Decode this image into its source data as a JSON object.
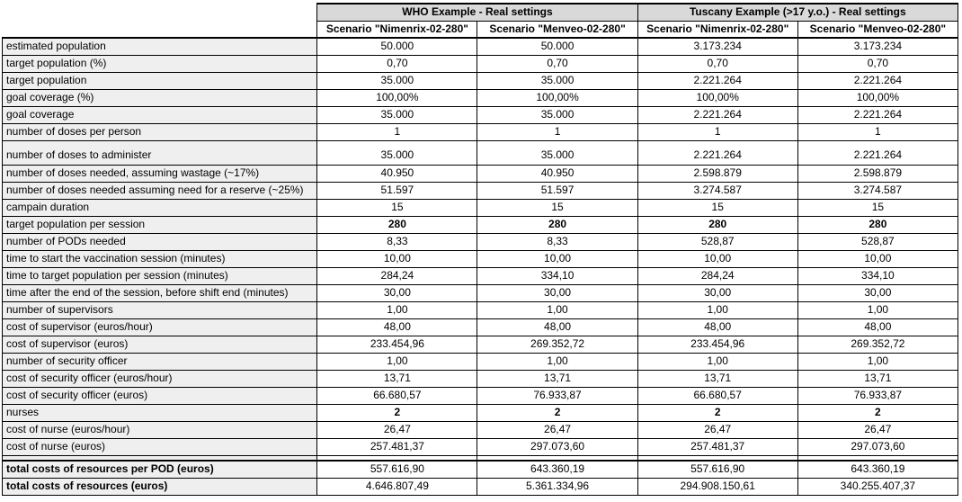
{
  "table": {
    "colors": {
      "group_header_bg": "#D9D9D9",
      "label_bg": "#EFEFEF",
      "border": "#000000",
      "value_bg": "#FFFFFF"
    },
    "groups": [
      {
        "label": "WHO Example - Real settings"
      },
      {
        "label": "Tuscany Example (>17 y.o.) - Real settings"
      }
    ],
    "scenario_headers": [
      "Scenario \"Nimenrix-02-280\"",
      "Scenario \"Menveo-02-280\"",
      "Scenario \"Nimenrix-02-280\"",
      "Scenario \"Menveo-02-280\""
    ],
    "rows": [
      {
        "label": "estimated population",
        "values": [
          "50.000",
          "50.000",
          "3.173.234",
          "3.173.234"
        ]
      },
      {
        "label": "target population (%)",
        "values": [
          "0,70",
          "0,70",
          "0,70",
          "0,70"
        ]
      },
      {
        "label": "target population",
        "values": [
          "35.000",
          "35.000",
          "2.221.264",
          "2.221.264"
        ]
      },
      {
        "label": "goal coverage (%)",
        "values": [
          "100,00%",
          "100,00%",
          "100,00%",
          "100,00%"
        ]
      },
      {
        "label": "goal coverage",
        "values": [
          "35.000",
          "35.000",
          "2.221.264",
          "2.221.264"
        ]
      },
      {
        "label": "number of doses per person",
        "values": [
          "1",
          "1",
          "1",
          "1"
        ]
      },
      {
        "label": "number of doses to administer",
        "values": [
          "35.000",
          "35.000",
          "2.221.264",
          "2.221.264"
        ],
        "tall": true
      },
      {
        "label": "number of doses needed, assuming wastage (~17%)",
        "values": [
          "40.950",
          "40.950",
          "2.598.879",
          "2.598.879"
        ]
      },
      {
        "label": "number of doses needed assuming need for a reserve (~25%)",
        "values": [
          "51.597",
          "51.597",
          "3.274.587",
          "3.274.587"
        ]
      },
      {
        "label": "campain duration",
        "values": [
          "15",
          "15",
          "15",
          "15"
        ]
      },
      {
        "label": "target population per session",
        "values": [
          "280",
          "280",
          "280",
          "280"
        ],
        "bold_values": true
      },
      {
        "label": "number of PODs needed",
        "values": [
          "8,33",
          "8,33",
          "528,87",
          "528,87"
        ]
      },
      {
        "label": "time to start the vaccination session (minutes)",
        "values": [
          "10,00",
          "10,00",
          "10,00",
          "10,00"
        ]
      },
      {
        "label": "time to target population per session (minutes)",
        "values": [
          "284,24",
          "334,10",
          "284,24",
          "334,10"
        ]
      },
      {
        "label": "time after the end of the session, before shift end (minutes)",
        "values": [
          "30,00",
          "30,00",
          "30,00",
          "30,00"
        ]
      },
      {
        "label": "number of supervisors",
        "values": [
          "1,00",
          "1,00",
          "1,00",
          "1,00"
        ]
      },
      {
        "label": "cost of supervisor (euros/hour)",
        "values": [
          "48,00",
          "48,00",
          "48,00",
          "48,00"
        ]
      },
      {
        "label": "cost of supervisor (euros)",
        "values": [
          "233.454,96",
          "269.352,72",
          "233.454,96",
          "269.352,72"
        ]
      },
      {
        "label": "number of security officer",
        "values": [
          "1,00",
          "1,00",
          "1,00",
          "1,00"
        ]
      },
      {
        "label": "cost of security officer (euros/hour)",
        "values": [
          "13,71",
          "13,71",
          "13,71",
          "13,71"
        ]
      },
      {
        "label": "cost of security officer (euros)",
        "values": [
          "66.680,57",
          "76.933,87",
          "66.680,57",
          "76.933,87"
        ]
      },
      {
        "label": "nurses",
        "values": [
          "2",
          "2",
          "2",
          "2"
        ],
        "bold_values": true
      },
      {
        "label": "cost of nurse (euros/hour)",
        "values": [
          "26,47",
          "26,47",
          "26,47",
          "26,47"
        ]
      },
      {
        "label": "cost of nurse (euros)",
        "values": [
          "257.481,37",
          "297.073,60",
          "257.481,37",
          "297.073,60"
        ]
      },
      {
        "spacer": true
      },
      {
        "label": "total costs of resources per POD (euros)",
        "values": [
          "557.616,90",
          "643.360,19",
          "557.616,90",
          "643.360,19"
        ],
        "bold_label": true,
        "totals_first": true
      },
      {
        "label": "total costs of resources (euros)",
        "values": [
          "4.646.807,49",
          "5.361.334,96",
          "294.908.150,61",
          "340.255.407,37"
        ],
        "bold_label": true
      }
    ]
  }
}
